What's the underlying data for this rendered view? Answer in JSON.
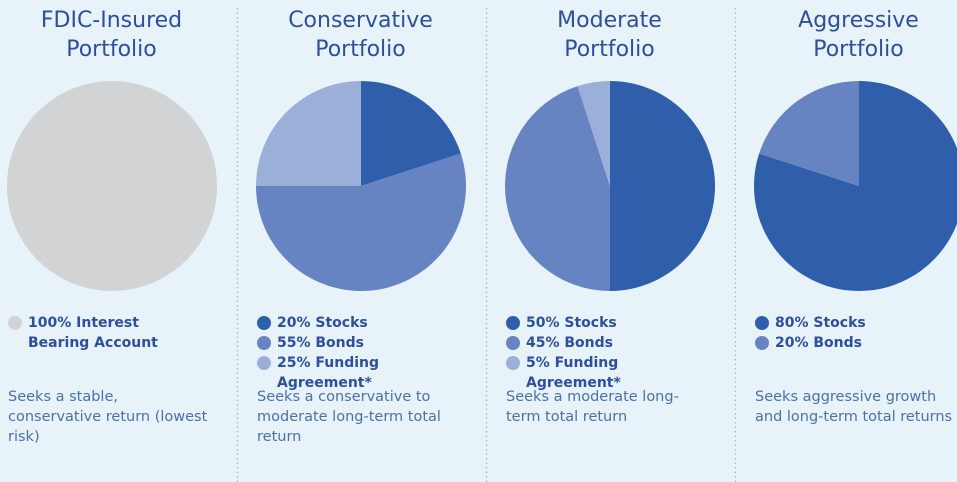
{
  "chart_data": [
    {
      "type": "pie",
      "title": "FDIC-Insured Portfolio",
      "categories": [
        "Interest Bearing Account"
      ],
      "values": [
        100
      ],
      "value_labels": [
        "100%"
      ],
      "colors": [
        "#d2d3d5"
      ],
      "description": "Seeks a stable, conservative return (lowest risk)"
    },
    {
      "type": "pie",
      "title": "Conservative Portfolio",
      "categories": [
        "Stocks",
        "Bonds",
        "Funding Agreement*"
      ],
      "values": [
        20,
        55,
        25
      ],
      "value_labels": [
        "20%",
        "55%",
        "25%"
      ],
      "colors": [
        "#2f5eab",
        "#6684c2",
        "#9bb0d8"
      ],
      "description": "Seeks a conservative to moderate long-term total return"
    },
    {
      "type": "pie",
      "title": "Moderate Portfolio",
      "categories": [
        "Stocks",
        "Bonds",
        "Funding Agreement*"
      ],
      "values": [
        50,
        45,
        5
      ],
      "value_labels": [
        "50%",
        "45%",
        "5%"
      ],
      "colors": [
        "#2f5eab",
        "#6684c2",
        "#9bb0d8"
      ],
      "description": "Seeks a moderate long-term total return"
    },
    {
      "type": "pie",
      "title": "Aggressive Portfolio",
      "categories": [
        "Stocks",
        "Bonds"
      ],
      "values": [
        80,
        20
      ],
      "value_labels": [
        "80%",
        "20%"
      ],
      "colors": [
        "#2f5eab",
        "#6684c2"
      ],
      "description": "Seeks aggressive growth and long-term total returns"
    }
  ]
}
